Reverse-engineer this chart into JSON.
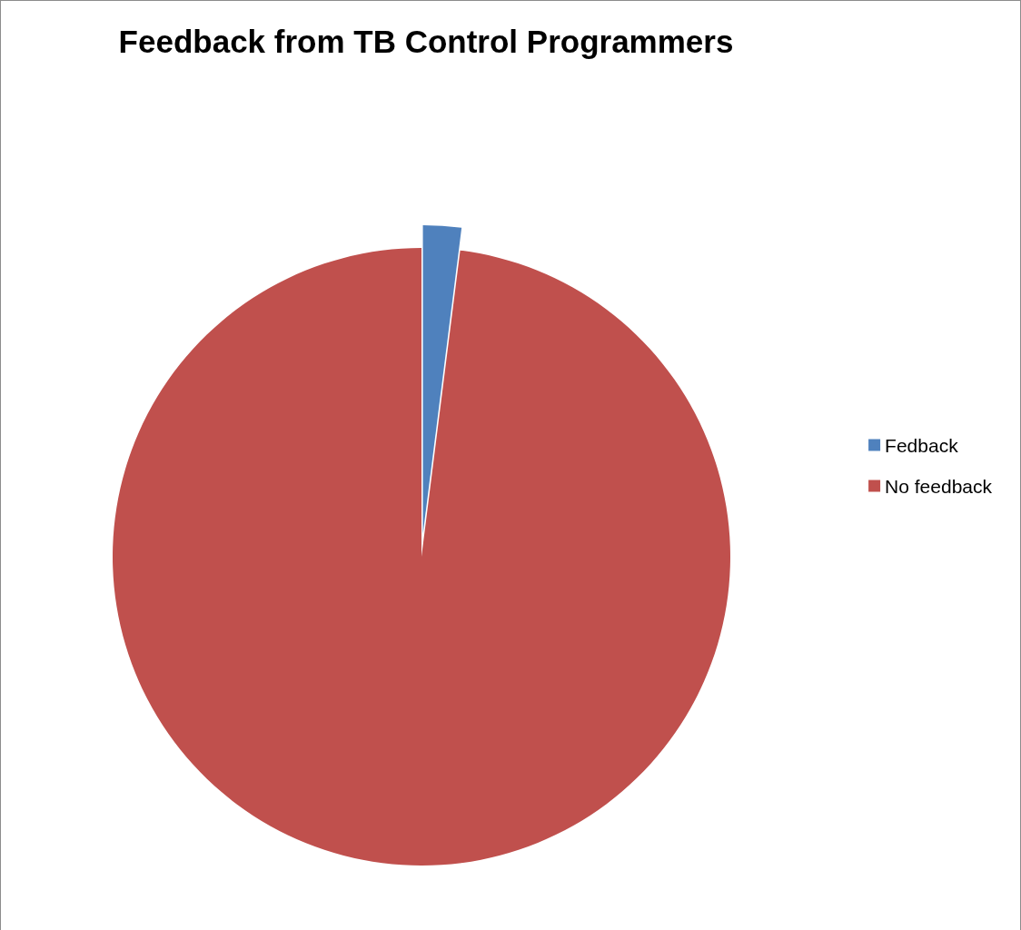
{
  "chart_data": {
    "type": "pie",
    "title": "Feedback from TB Control Programmers",
    "categories": [
      "Fedback",
      "No feedback"
    ],
    "values": [
      2,
      98
    ],
    "colors": [
      "#4f81bd",
      "#c0504d"
    ],
    "legend": "right"
  }
}
